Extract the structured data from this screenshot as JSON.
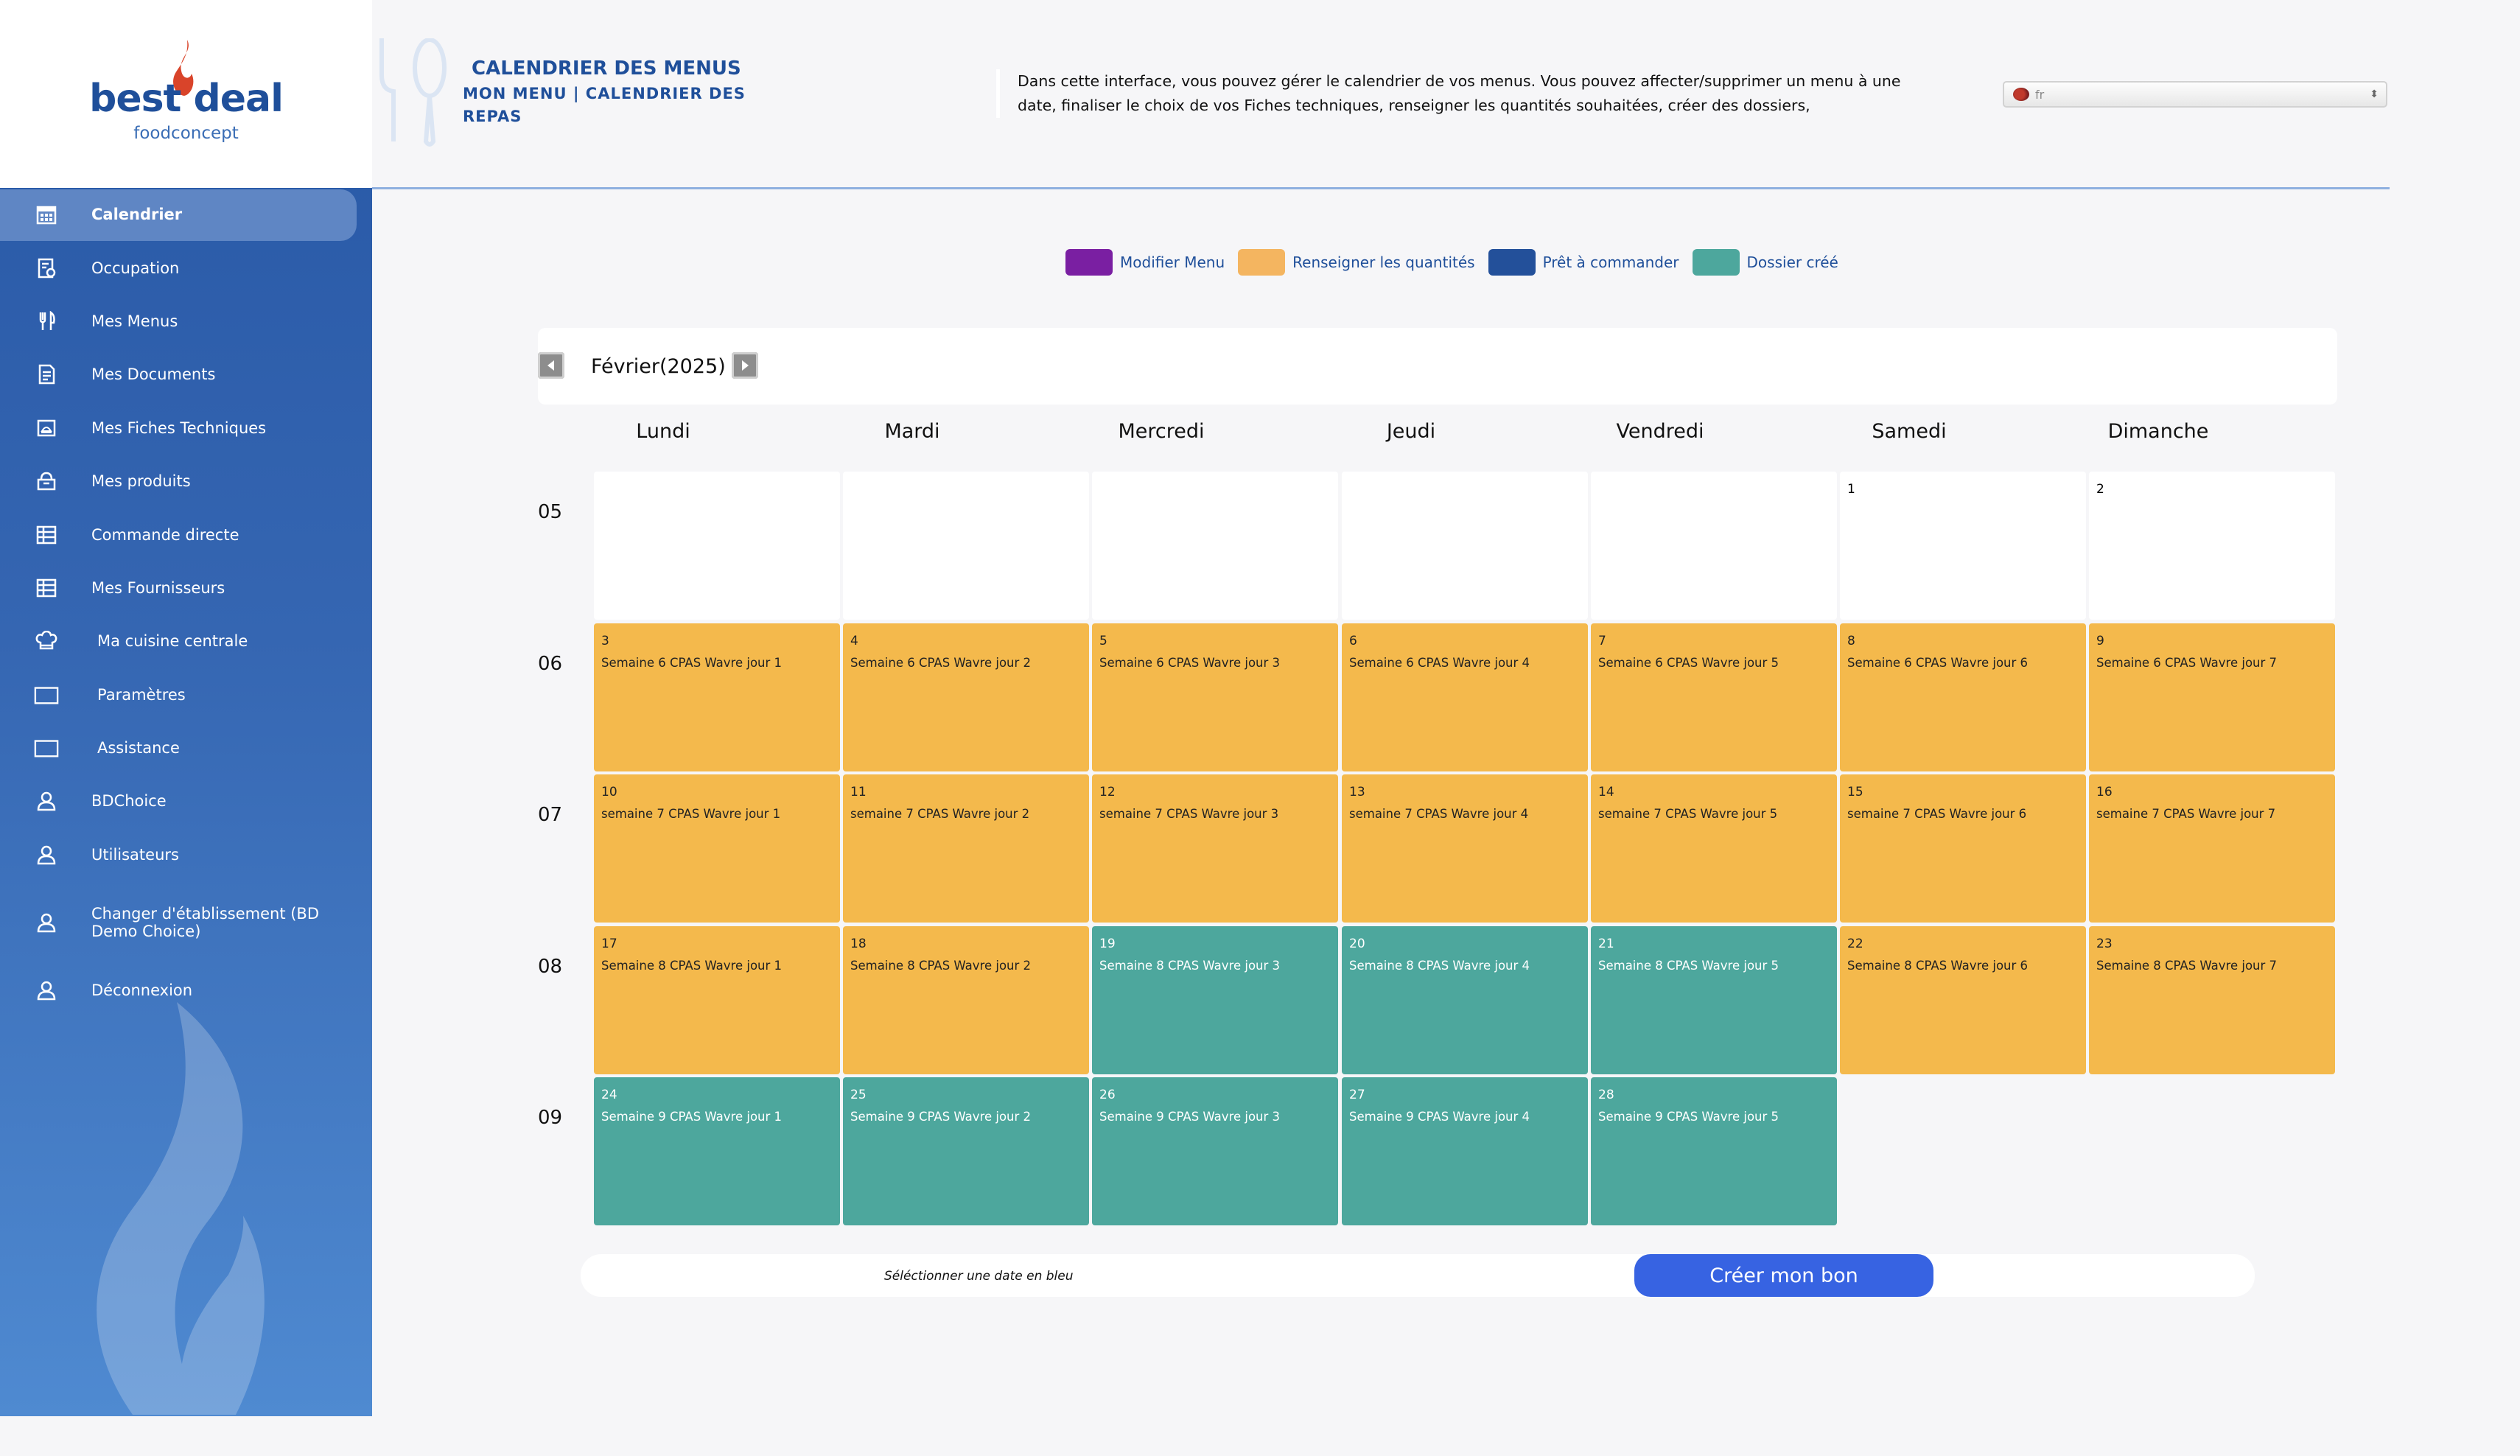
{
  "brand": {
    "name": "best deal",
    "sub": "foodconcept"
  },
  "sidebar": {
    "items": [
      {
        "label": "Calendrier",
        "icon": "calendar-icon",
        "active": true
      },
      {
        "label": "Occupation",
        "icon": "occupation-icon"
      },
      {
        "label": "Mes Menus",
        "icon": "cutlery-icon"
      },
      {
        "label": "Mes Documents",
        "icon": "document-icon"
      },
      {
        "label": "Mes Fiches Techniques",
        "icon": "recipe-card-icon"
      },
      {
        "label": "Mes produits",
        "icon": "products-icon"
      },
      {
        "label": "Commande directe",
        "icon": "table-icon"
      },
      {
        "label": "Mes Fournisseurs",
        "icon": "table-icon"
      },
      {
        "label": "Ma cuisine centrale",
        "icon": "chef-hat-icon"
      },
      {
        "label": "Paramètres",
        "icon": "window-icon"
      },
      {
        "label": "Assistance",
        "icon": "window-icon"
      },
      {
        "label": "BDChoice",
        "icon": "user-icon"
      },
      {
        "label": "Utilisateurs",
        "icon": "user-icon"
      },
      {
        "label": "Changer d'établissement (BD Demo Choice)",
        "icon": "user-icon"
      },
      {
        "label": "Déconnexion",
        "icon": "user-icon"
      }
    ]
  },
  "header": {
    "title": "CALENDRIER DES MENUS",
    "breadcrumb": "MON MENU | CALENDRIER DES REPAS",
    "description": "Dans cette interface, vous pouvez gérer le calendrier de vos menus. Vous pouvez affecter/supprimer un menu à une date, finaliser le choix de vos Fiches techniques, renseigner les quantités souhaitées, créer des dossiers,",
    "language": "fr"
  },
  "legend": [
    {
      "label": "Modifier Menu",
      "color": "#7a1fa2"
    },
    {
      "label": "Renseigner les quantités",
      "color": "#f4b560"
    },
    {
      "label": "Prêt à commander",
      "color": "#23509a"
    },
    {
      "label": "Dossier créé",
      "color": "#4da79d"
    }
  ],
  "calendar": {
    "month_label": "Février(2025)",
    "days": [
      "Lundi",
      "Mardi",
      "Mercredi",
      "Jeudi",
      "Vendredi",
      "Samedi",
      "Dimanche"
    ],
    "weeks": [
      {
        "num": "05",
        "cells": [
          {
            "status": "blank"
          },
          {
            "status": "blank"
          },
          {
            "status": "blank"
          },
          {
            "status": "blank"
          },
          {
            "status": "blank"
          },
          {
            "day": "1",
            "status": "blank"
          },
          {
            "day": "2",
            "status": "blank"
          }
        ]
      },
      {
        "num": "06",
        "cells": [
          {
            "day": "3",
            "menu": "Semaine 6 CPAS Wavre jour 1",
            "status": "orange"
          },
          {
            "day": "4",
            "menu": "Semaine 6 CPAS Wavre jour 2",
            "status": "orange"
          },
          {
            "day": "5",
            "menu": "Semaine 6 CPAS Wavre jour 3",
            "status": "orange"
          },
          {
            "day": "6",
            "menu": "Semaine 6 CPAS Wavre jour 4",
            "status": "orange"
          },
          {
            "day": "7",
            "menu": "Semaine 6 CPAS Wavre jour 5",
            "status": "orange"
          },
          {
            "day": "8",
            "menu": "Semaine 6 CPAS Wavre jour 6",
            "status": "orange"
          },
          {
            "day": "9",
            "menu": "Semaine 6 CPAS Wavre jour 7",
            "status": "orange"
          }
        ]
      },
      {
        "num": "07",
        "cells": [
          {
            "day": "10",
            "menu": "semaine 7 CPAS Wavre jour 1",
            "status": "orange"
          },
          {
            "day": "11",
            "menu": "semaine 7 CPAS Wavre jour 2",
            "status": "orange"
          },
          {
            "day": "12",
            "menu": "semaine 7 CPAS Wavre jour 3",
            "status": "orange"
          },
          {
            "day": "13",
            "menu": "semaine 7 CPAS Wavre jour 4",
            "status": "orange"
          },
          {
            "day": "14",
            "menu": "semaine 7 CPAS Wavre jour 5",
            "status": "orange"
          },
          {
            "day": "15",
            "menu": "semaine 7 CPAS Wavre jour 6",
            "status": "orange"
          },
          {
            "day": "16",
            "menu": "semaine 7 CPAS Wavre jour 7",
            "status": "orange"
          }
        ]
      },
      {
        "num": "08",
        "cells": [
          {
            "day": "17",
            "menu": "Semaine 8 CPAS Wavre jour 1",
            "status": "orange"
          },
          {
            "day": "18",
            "menu": "Semaine 8 CPAS Wavre jour 2",
            "status": "orange"
          },
          {
            "day": "19",
            "menu": "Semaine 8 CPAS Wavre jour 3",
            "status": "teal"
          },
          {
            "day": "20",
            "menu": "Semaine 8 CPAS Wavre jour 4",
            "status": "teal"
          },
          {
            "day": "21",
            "menu": "Semaine 8 CPAS Wavre jour 5",
            "status": "teal"
          },
          {
            "day": "22",
            "menu": "Semaine 8 CPAS Wavre jour 6",
            "status": "orange"
          },
          {
            "day": "23",
            "menu": "Semaine 8 CPAS Wavre jour 7",
            "status": "orange"
          }
        ]
      },
      {
        "num": "09",
        "cells": [
          {
            "day": "24",
            "menu": "Semaine 9 CPAS Wavre jour 1",
            "status": "teal"
          },
          {
            "day": "25",
            "menu": "Semaine 9 CPAS Wavre jour 2",
            "status": "teal"
          },
          {
            "day": "26",
            "menu": "Semaine 9 CPAS Wavre jour 3",
            "status": "teal"
          },
          {
            "day": "27",
            "menu": "Semaine 9 CPAS Wavre jour 4",
            "status": "teal"
          },
          {
            "day": "28",
            "menu": "Semaine 9 CPAS Wavre jour 5",
            "status": "teal"
          },
          {
            "status": "none"
          },
          {
            "status": "none"
          }
        ]
      }
    ]
  },
  "footer": {
    "hint": "Séléctionner une date en bleu",
    "create_button": "Créer mon bon"
  }
}
